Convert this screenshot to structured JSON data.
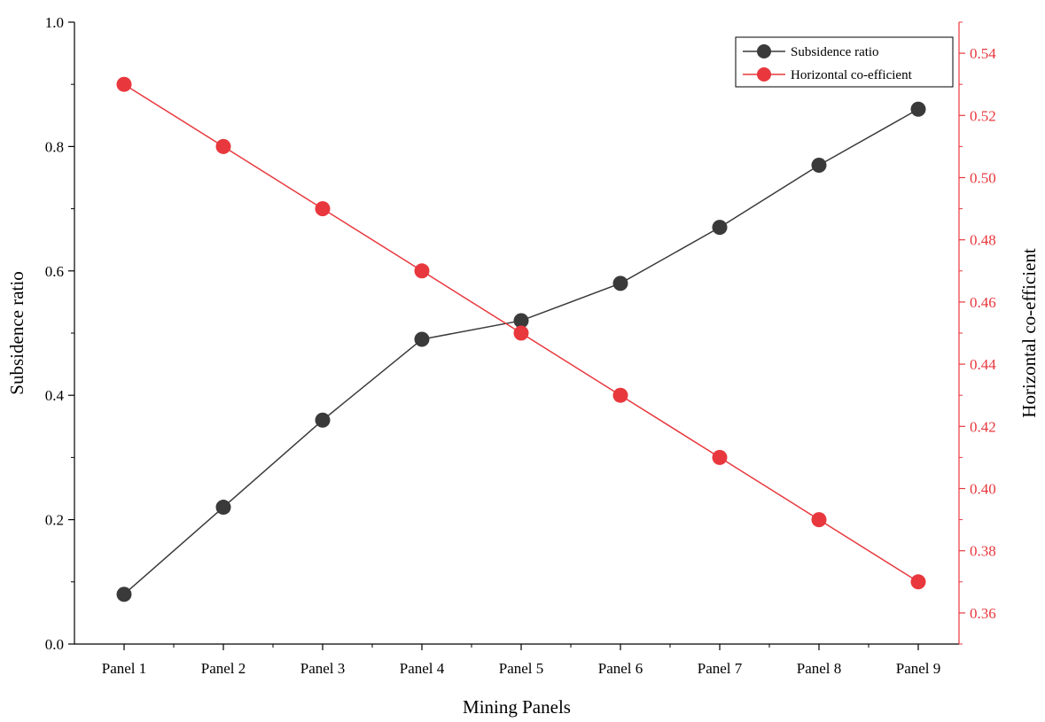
{
  "chart_data": {
    "type": "line",
    "categories": [
      "Panel 1",
      "Panel 2",
      "Panel 3",
      "Panel 4",
      "Panel 5",
      "Panel 6",
      "Panel 7",
      "Panel 8",
      "Panel 9"
    ],
    "xlabel": "Mining Panels",
    "ylabel": "Subsidence ratio",
    "y2label": "Horizontal co-efficient",
    "ylim": [
      0.0,
      1.0
    ],
    "y2lim": [
      0.35,
      0.55
    ],
    "y_ticks": [
      "0.0",
      "0.2",
      "0.4",
      "0.6",
      "0.8",
      "1.0"
    ],
    "y2_ticks": [
      "0.36",
      "0.38",
      "0.40",
      "0.42",
      "0.44",
      "0.46",
      "0.48",
      "0.50",
      "0.52",
      "0.54"
    ],
    "legend_position": "top-right",
    "series": [
      {
        "name": "Subsidence ratio",
        "axis": "left",
        "color": "#3a3a3a",
        "values": [
          0.08,
          0.22,
          0.36,
          0.49,
          0.52,
          0.58,
          0.67,
          0.77,
          0.86
        ]
      },
      {
        "name": "Horizontal co-efficient",
        "axis": "right",
        "color": "#e8383d",
        "values": [
          0.53,
          0.51,
          0.49,
          0.47,
          0.45,
          0.43,
          0.41,
          0.39,
          0.37
        ]
      }
    ]
  }
}
